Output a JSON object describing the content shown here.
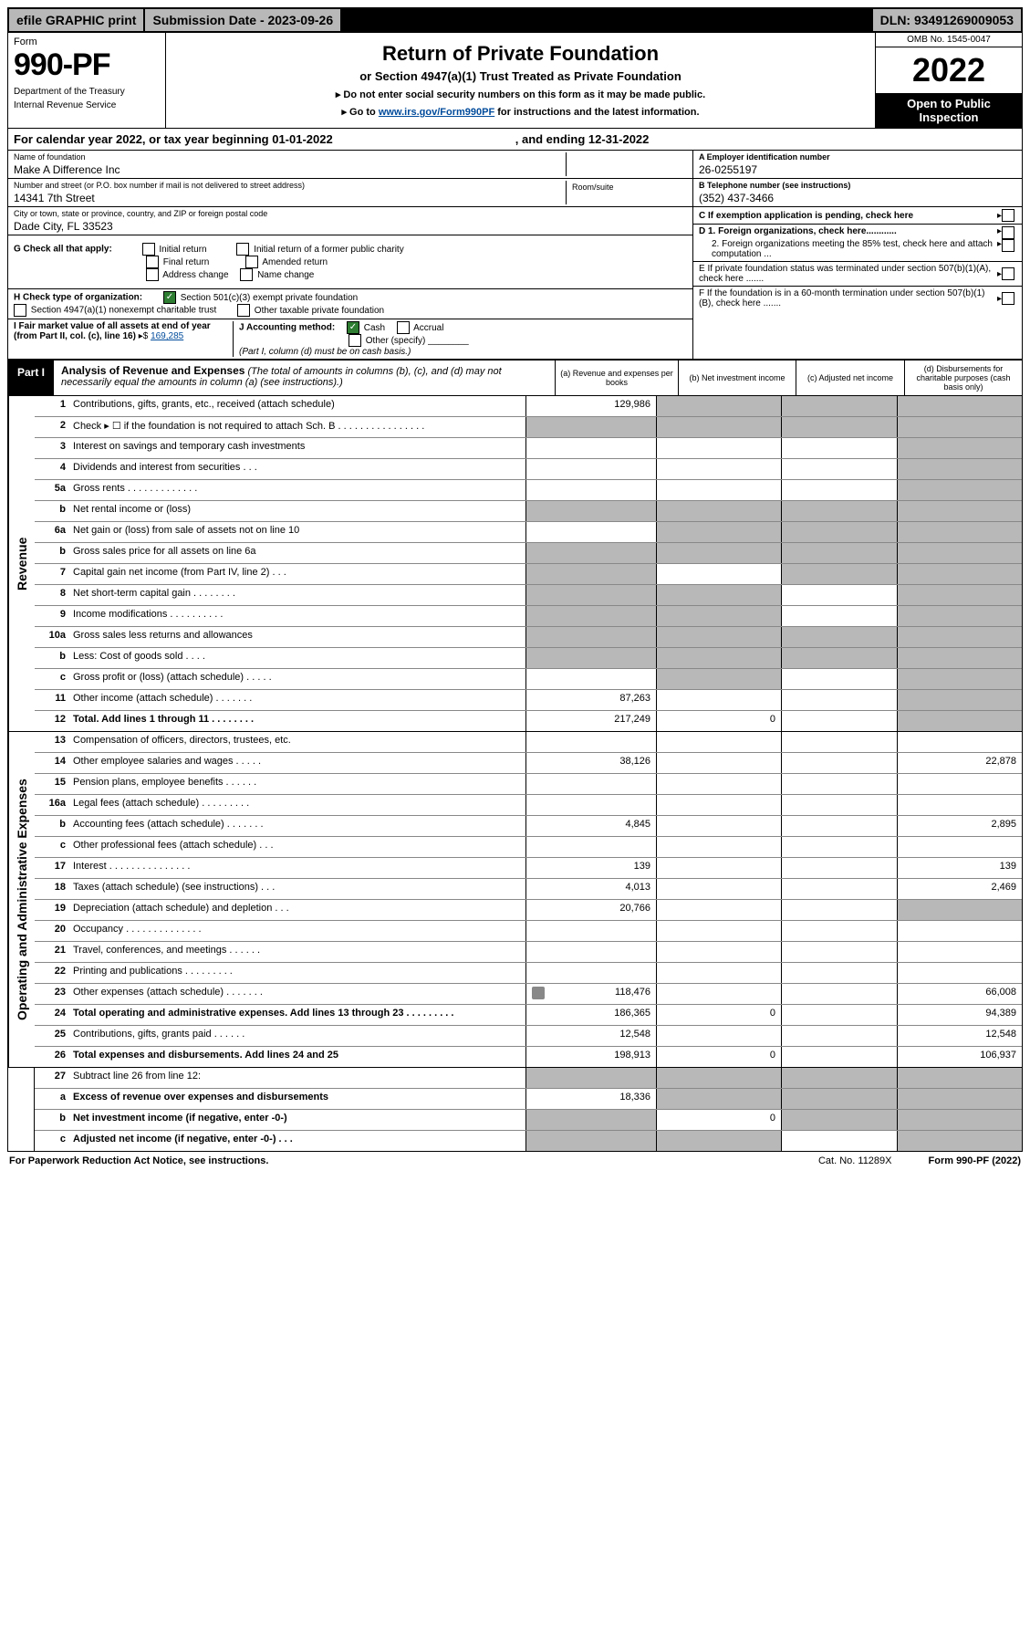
{
  "topbar": {
    "efile": "efile GRAPHIC print",
    "subdate_label": "Submission Date - 2023-09-26",
    "dln": "DLN: 93491269009053"
  },
  "header": {
    "form_label": "Form",
    "form_number": "990-PF",
    "dept": "Department of the Treasury",
    "irs": "Internal Revenue Service",
    "title": "Return of Private Foundation",
    "subtitle": "or Section 4947(a)(1) Trust Treated as Private Foundation",
    "note1": "▸ Do not enter social security numbers on this form as it may be made public.",
    "note2_pre": "▸ Go to ",
    "note2_link": "www.irs.gov/Form990PF",
    "note2_post": " for instructions and the latest information.",
    "omb": "OMB No. 1545-0047",
    "year": "2022",
    "open": "Open to Public Inspection"
  },
  "calyear": {
    "pre": "For calendar year 2022, or tax year beginning 01-01-2022",
    "mid": ", and ending 12-31-2022"
  },
  "info": {
    "name_label": "Name of foundation",
    "name": "Make A Difference Inc",
    "room_label": "Room/suite",
    "addr_label": "Number and street (or P.O. box number if mail is not delivered to street address)",
    "addr": "14341 7th Street",
    "city_label": "City or town, state or province, country, and ZIP or foreign postal code",
    "city": "Dade City, FL  33523",
    "ein_label": "A Employer identification number",
    "ein": "26-0255197",
    "tel_label": "B Telephone number (see instructions)",
    "tel": "(352) 437-3466",
    "c": "C If exemption application is pending, check here",
    "d1": "D 1. Foreign organizations, check here............",
    "d2": "2. Foreign organizations meeting the 85% test, check here and attach computation ...",
    "e": "E  If private foundation status was terminated under section 507(b)(1)(A), check here .......",
    "f": "F  If the foundation is in a 60-month termination under section 507(b)(1)(B), check here .......",
    "g_label": "G Check all that apply:",
    "g_opts": [
      "Initial return",
      "Final return",
      "Address change",
      "Initial return of a former public charity",
      "Amended return",
      "Name change"
    ],
    "h_label": "H Check type of organization:",
    "h1": "Section 501(c)(3) exempt private foundation",
    "h2": "Section 4947(a)(1) nonexempt charitable trust",
    "h3": "Other taxable private foundation",
    "i_label": "I Fair market value of all assets at end of year (from Part II, col. (c), line 16)",
    "i_val": "169,285",
    "j_label": "J Accounting method:",
    "j_cash": "Cash",
    "j_accrual": "Accrual",
    "j_other": "Other (specify)",
    "j_note": "(Part I, column (d) must be on cash basis.)"
  },
  "part1": {
    "label": "Part I",
    "title": "Analysis of Revenue and Expenses",
    "title_note": "(The total of amounts in columns (b), (c), and (d) may not necessarily equal the amounts in column (a) (see instructions).)",
    "col_a": "(a)   Revenue and expenses per books",
    "col_b": "(b)   Net investment income",
    "col_c": "(c)   Adjusted net income",
    "col_d": "(d)   Disbursements for charitable purposes (cash basis only)"
  },
  "sections": {
    "revenue": "Revenue",
    "expenses": "Operating and Administrative Expenses"
  },
  "rows": {
    "r1": {
      "num": "1",
      "desc": "Contributions, gifts, grants, etc., received (attach schedule)",
      "a": "129,986"
    },
    "r2": {
      "num": "2",
      "desc": "Check ▸ ☐ if the foundation is not required to attach Sch. B   .  .  .  .  .  .  .  .  .  .  .  .  .  .  .  ."
    },
    "r3": {
      "num": "3",
      "desc": "Interest on savings and temporary cash investments"
    },
    "r4": {
      "num": "4",
      "desc": "Dividends and interest from securities   .  .  ."
    },
    "r5a": {
      "num": "5a",
      "desc": "Gross rents   .  .  .  .  .  .  .  .  .  .  .  .  ."
    },
    "r5b": {
      "num": "b",
      "desc": "Net rental income or (loss)"
    },
    "r6a": {
      "num": "6a",
      "desc": "Net gain or (loss) from sale of assets not on line 10"
    },
    "r6b": {
      "num": "b",
      "desc": "Gross sales price for all assets on line 6a"
    },
    "r7": {
      "num": "7",
      "desc": "Capital gain net income (from Part IV, line 2)   .  .  ."
    },
    "r8": {
      "num": "8",
      "desc": "Net short-term capital gain  .  .  .  .  .  .  .  ."
    },
    "r9": {
      "num": "9",
      "desc": "Income modifications  .  .  .  .  .  .  .  .  .  ."
    },
    "r10a": {
      "num": "10a",
      "desc": "Gross sales less returns and allowances"
    },
    "r10b": {
      "num": "b",
      "desc": "Less: Cost of goods sold   .  .  .  ."
    },
    "r10c": {
      "num": "c",
      "desc": "Gross profit or (loss) (attach schedule)   .  .  .  .  ."
    },
    "r11": {
      "num": "11",
      "desc": "Other income (attach schedule)   .  .  .  .  .  .  .",
      "a": "87,263"
    },
    "r12": {
      "num": "12",
      "desc": "Total. Add lines 1 through 11  .  .  .  .  .  .  .  .",
      "bold": true,
      "a": "217,249",
      "b": "0"
    },
    "r13": {
      "num": "13",
      "desc": "Compensation of officers, directors, trustees, etc."
    },
    "r14": {
      "num": "14",
      "desc": "Other employee salaries and wages   .  .  .  .  .",
      "a": "38,126",
      "d": "22,878"
    },
    "r15": {
      "num": "15",
      "desc": "Pension plans, employee benefits  .  .  .  .  .  ."
    },
    "r16a": {
      "num": "16a",
      "desc": "Legal fees (attach schedule)  .  .  .  .  .  .  .  .  ."
    },
    "r16b": {
      "num": "b",
      "desc": "Accounting fees (attach schedule)  .  .  .  .  .  .  .",
      "a": "4,845",
      "d": "2,895"
    },
    "r16c": {
      "num": "c",
      "desc": "Other professional fees (attach schedule)   .  .  ."
    },
    "r17": {
      "num": "17",
      "desc": "Interest  .  .  .  .  .  .  .  .  .  .  .  .  .  .  .",
      "a": "139",
      "d": "139"
    },
    "r18": {
      "num": "18",
      "desc": "Taxes (attach schedule) (see instructions)   .  .  .",
      "a": "4,013",
      "d": "2,469"
    },
    "r19": {
      "num": "19",
      "desc": "Depreciation (attach schedule) and depletion  .  .  .",
      "a": "20,766"
    },
    "r20": {
      "num": "20",
      "desc": "Occupancy  .  .  .  .  .  .  .  .  .  .  .  .  .  ."
    },
    "r21": {
      "num": "21",
      "desc": "Travel, conferences, and meetings  .  .  .  .  .  ."
    },
    "r22": {
      "num": "22",
      "desc": "Printing and publications  .  .  .  .  .  .  .  .  ."
    },
    "r23": {
      "num": "23",
      "desc": "Other expenses (attach schedule)  .  .  .  .  .  .  .",
      "a": "118,476",
      "d": "66,008",
      "icon": true
    },
    "r24": {
      "num": "24",
      "desc": "Total operating and administrative expenses. Add lines 13 through 23  .  .  .  .  .  .  .  .  .",
      "bold": true,
      "a": "186,365",
      "b": "0",
      "d": "94,389"
    },
    "r25": {
      "num": "25",
      "desc": "Contributions, gifts, grants paid   .  .  .  .  .  .",
      "a": "12,548",
      "d": "12,548"
    },
    "r26": {
      "num": "26",
      "desc": "Total expenses and disbursements. Add lines 24 and 25",
      "bold": true,
      "a": "198,913",
      "b": "0",
      "d": "106,937"
    },
    "r27": {
      "num": "27",
      "desc": "Subtract line 26 from line 12:"
    },
    "r27a": {
      "num": "a",
      "desc": "Excess of revenue over expenses and disbursements",
      "bold": true,
      "a": "18,336"
    },
    "r27b": {
      "num": "b",
      "desc": "Net investment income (if negative, enter -0-)",
      "bold": true,
      "b": "0"
    },
    "r27c": {
      "num": "c",
      "desc": "Adjusted net income (if negative, enter -0-)  .  .  .",
      "bold": true
    }
  },
  "footer": {
    "left": "For Paperwork Reduction Act Notice, see instructions.",
    "mid": "Cat. No. 11289X",
    "right": "Form 990-PF (2022)"
  },
  "colors": {
    "shade": "#b8b8b8",
    "link": "#004b9b",
    "check": "#2e7d32"
  }
}
